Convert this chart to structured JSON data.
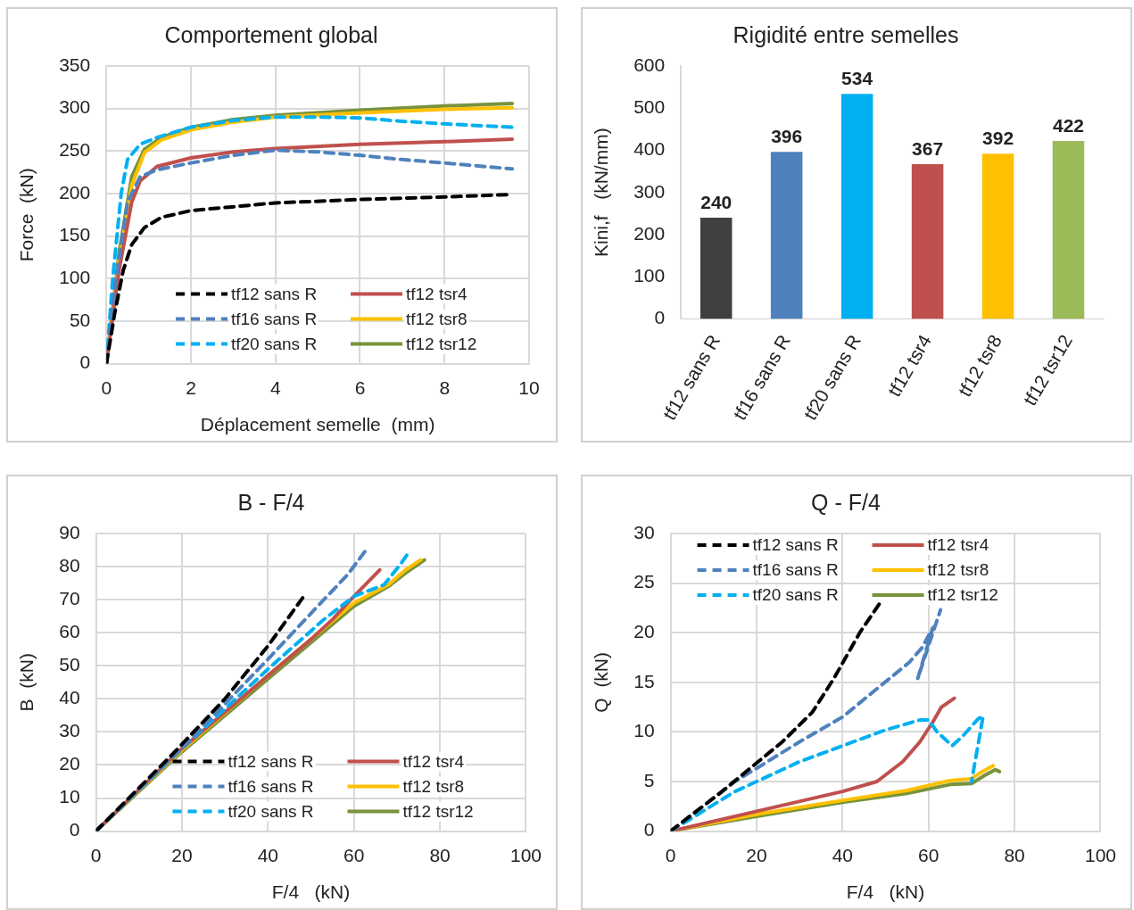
{
  "chart_data": [
    {
      "type": "line",
      "title": "Comportement global",
      "xlabel": "Déplacement semelle  (mm)",
      "ylabel": "Force  (kN)",
      "xlim": [
        0,
        10
      ],
      "xticks": [
        0,
        2,
        4,
        6,
        8,
        10
      ],
      "ylim": [
        0,
        350
      ],
      "yticks": [
        0,
        50,
        100,
        150,
        200,
        250,
        300,
        350
      ],
      "grid": true,
      "legend": "bottom right",
      "marker": "none",
      "series": [
        {
          "name": "tf12 sans R",
          "color": "#000000",
          "line_style": "dashed",
          "x": [
            0,
            0.2,
            0.4,
            0.6,
            0.9,
            1.3,
            2,
            4,
            6,
            8,
            9.6
          ],
          "values": [
            0,
            60,
            110,
            140,
            160,
            172,
            180,
            189,
            193,
            196,
            199
          ]
        },
        {
          "name": "tf16 sans R",
          "color": "#4f81bd",
          "line_style": "dashed",
          "x": [
            0,
            0.2,
            0.5,
            0.8,
            1.2,
            2,
            3,
            4,
            5,
            6,
            7,
            8,
            9.6
          ],
          "values": [
            0,
            90,
            190,
            220,
            228,
            236,
            245,
            251,
            249,
            245,
            240,
            236,
            229
          ]
        },
        {
          "name": "tf20 sans R",
          "color": "#00b0f0",
          "line_style": "dashed",
          "x": [
            0,
            0.15,
            0.35,
            0.5,
            0.8,
            1.2,
            2,
            3,
            4,
            5,
            6,
            7,
            8,
            9.6
          ],
          "values": [
            0,
            100,
            200,
            240,
            258,
            266,
            278,
            286,
            290,
            290,
            289,
            285,
            282,
            278
          ]
        },
        {
          "name": "tf12 tsr4",
          "color": "#c0504d",
          "line_style": "solid",
          "x": [
            0,
            0.3,
            0.6,
            0.8,
            1.2,
            2,
            3,
            4,
            6,
            8,
            9.6
          ],
          "values": [
            0,
            110,
            190,
            215,
            232,
            242,
            249,
            253,
            258,
            261,
            264
          ]
        },
        {
          "name": "tf12 tsr8",
          "color": "#ffc000",
          "line_style": "solid",
          "x": [
            0,
            0.3,
            0.6,
            0.9,
            1.3,
            2,
            3,
            4,
            6,
            8,
            9.6
          ],
          "values": [
            0,
            120,
            210,
            248,
            263,
            275,
            284,
            290,
            295,
            299,
            301
          ]
        },
        {
          "name": "tf12 tsr12",
          "color": "#77933c",
          "line_style": "solid",
          "x": [
            0,
            0.3,
            0.6,
            0.9,
            1.3,
            2,
            3,
            4,
            6,
            8,
            9.6
          ],
          "values": [
            0,
            130,
            220,
            252,
            266,
            278,
            287,
            292,
            298,
            303,
            306
          ]
        }
      ]
    },
    {
      "type": "bar",
      "title": "Rigidité entre semelles",
      "ylabel": "Kini,f   (kN/mm)",
      "categories": [
        "tf12 sans R",
        "tf16 sans R",
        "tf20 sans R",
        "tf12 tsr4",
        "tf12 tsr8",
        "tf12 tsr12"
      ],
      "values": [
        240,
        396,
        534,
        367,
        392,
        422
      ],
      "colors": [
        "#404040",
        "#4f81bd",
        "#00b0f0",
        "#c0504d",
        "#ffc000",
        "#9bbb59"
      ],
      "ylim": [
        0,
        600
      ],
      "yticks": [
        0,
        100,
        200,
        300,
        400,
        500,
        600
      ],
      "data_labels": true
    },
    {
      "type": "line",
      "title": "B - F/4",
      "xlabel": "F/4   (kN)",
      "ylabel": "B  (kN)",
      "xlim": [
        0,
        100
      ],
      "xticks": [
        0,
        20,
        40,
        60,
        80,
        100
      ],
      "ylim": [
        0,
        90
      ],
      "yticks": [
        0,
        10,
        20,
        30,
        40,
        50,
        60,
        70,
        80,
        90
      ],
      "grid": true,
      "legend": "bottom right",
      "marker": "none",
      "series": [
        {
          "name": "tf12 sans R",
          "color": "#000000",
          "line_style": "dashed",
          "x": [
            0,
            18,
            30,
            40,
            48.6
          ],
          "values": [
            0,
            23.5,
            40,
            56,
            71.5
          ]
        },
        {
          "name": "tf16 sans R",
          "color": "#4f81bd",
          "line_style": "dashed",
          "x": [
            0,
            20,
            40,
            53,
            58.5,
            62.8
          ],
          "values": [
            0,
            25,
            52,
            70,
            77.5,
            85
          ]
        },
        {
          "name": "tf20 sans R",
          "color": "#00b0f0",
          "line_style": "dashed",
          "x": [
            0,
            20,
            40,
            53,
            60,
            64,
            67,
            71,
            72.6
          ],
          "values": [
            0,
            25,
            49,
            64,
            71,
            73,
            74.5,
            81,
            84
          ]
        },
        {
          "name": "tf12 tsr4",
          "color": "#c0504d",
          "line_style": "solid",
          "x": [
            0,
            20,
            40,
            50,
            55,
            60,
            66
          ],
          "values": [
            0,
            25,
            47,
            58,
            64,
            71,
            79
          ]
        },
        {
          "name": "tf12 tsr8",
          "color": "#ffc000",
          "line_style": "solid",
          "x": [
            0,
            20,
            40,
            60,
            68,
            72,
            75.5
          ],
          "values": [
            0,
            24.5,
            47,
            69,
            74.5,
            79,
            82
          ]
        },
        {
          "name": "tf12 tsr12",
          "color": "#77933c",
          "line_style": "solid",
          "x": [
            0,
            20,
            40,
            60,
            68,
            72,
            76.4
          ],
          "values": [
            0,
            24,
            46,
            68,
            74,
            78,
            82
          ]
        }
      ]
    },
    {
      "type": "line",
      "title": "Q - F/4",
      "xlabel": "F/4   (kN)",
      "ylabel": "Q  (kN)",
      "xlim": [
        0,
        100
      ],
      "xticks": [
        0,
        20,
        40,
        60,
        80,
        100
      ],
      "ylim": [
        0,
        30
      ],
      "yticks": [
        0,
        5,
        10,
        15,
        20,
        25,
        30
      ],
      "grid": true,
      "legend": "top left",
      "marker": "none",
      "series": [
        {
          "name": "tf12 sans R",
          "color": "#000000",
          "line_style": "dashed",
          "x": [
            0,
            11.4,
            26,
            33,
            38,
            44,
            49
          ],
          "values": [
            0,
            3.8,
            9,
            12,
            15.4,
            20,
            23.2
          ]
        },
        {
          "name": "tf16 sans R",
          "color": "#4f81bd",
          "line_style": "dashed",
          "x": [
            0,
            15,
            30,
            40,
            47,
            55.5,
            58.5,
            61,
            57.5,
            61,
            62.8
          ],
          "values": [
            0,
            5,
            9,
            11.5,
            14,
            17,
            18.5,
            20.5,
            15.4,
            20,
            22.3
          ]
        },
        {
          "name": "tf20 sans R",
          "color": "#00b0f0",
          "line_style": "dashed",
          "x": [
            0,
            15,
            30,
            40,
            50,
            58,
            60,
            62,
            65.5,
            68,
            71.5,
            72.7,
            70
          ],
          "values": [
            0,
            4,
            7,
            8.6,
            10.2,
            11.2,
            11.2,
            10,
            8.6,
            9.6,
            11.3,
            11.6,
            5
          ]
        },
        {
          "name": "tf12 tsr4",
          "color": "#c0504d",
          "line_style": "solid",
          "x": [
            0,
            20,
            40,
            48,
            54,
            58,
            61,
            63,
            66
          ],
          "values": [
            0,
            2,
            4,
            5,
            7,
            9,
            11,
            12.5,
            13.4
          ]
        },
        {
          "name": "tf12 tsr8",
          "color": "#ffc000",
          "line_style": "solid",
          "x": [
            0,
            20,
            40,
            55,
            65,
            70,
            72.5,
            75
          ],
          "values": [
            0,
            1.7,
            3.1,
            4.1,
            5.1,
            5.3,
            6,
            6.6
          ]
        },
        {
          "name": "tf12 tsr12",
          "color": "#77933c",
          "line_style": "solid",
          "x": [
            0,
            20,
            40,
            55,
            65,
            70,
            73,
            75.5,
            76.5
          ],
          "values": [
            0,
            1.5,
            2.9,
            3.8,
            4.7,
            4.8,
            5.6,
            6.2,
            6
          ]
        }
      ]
    }
  ]
}
